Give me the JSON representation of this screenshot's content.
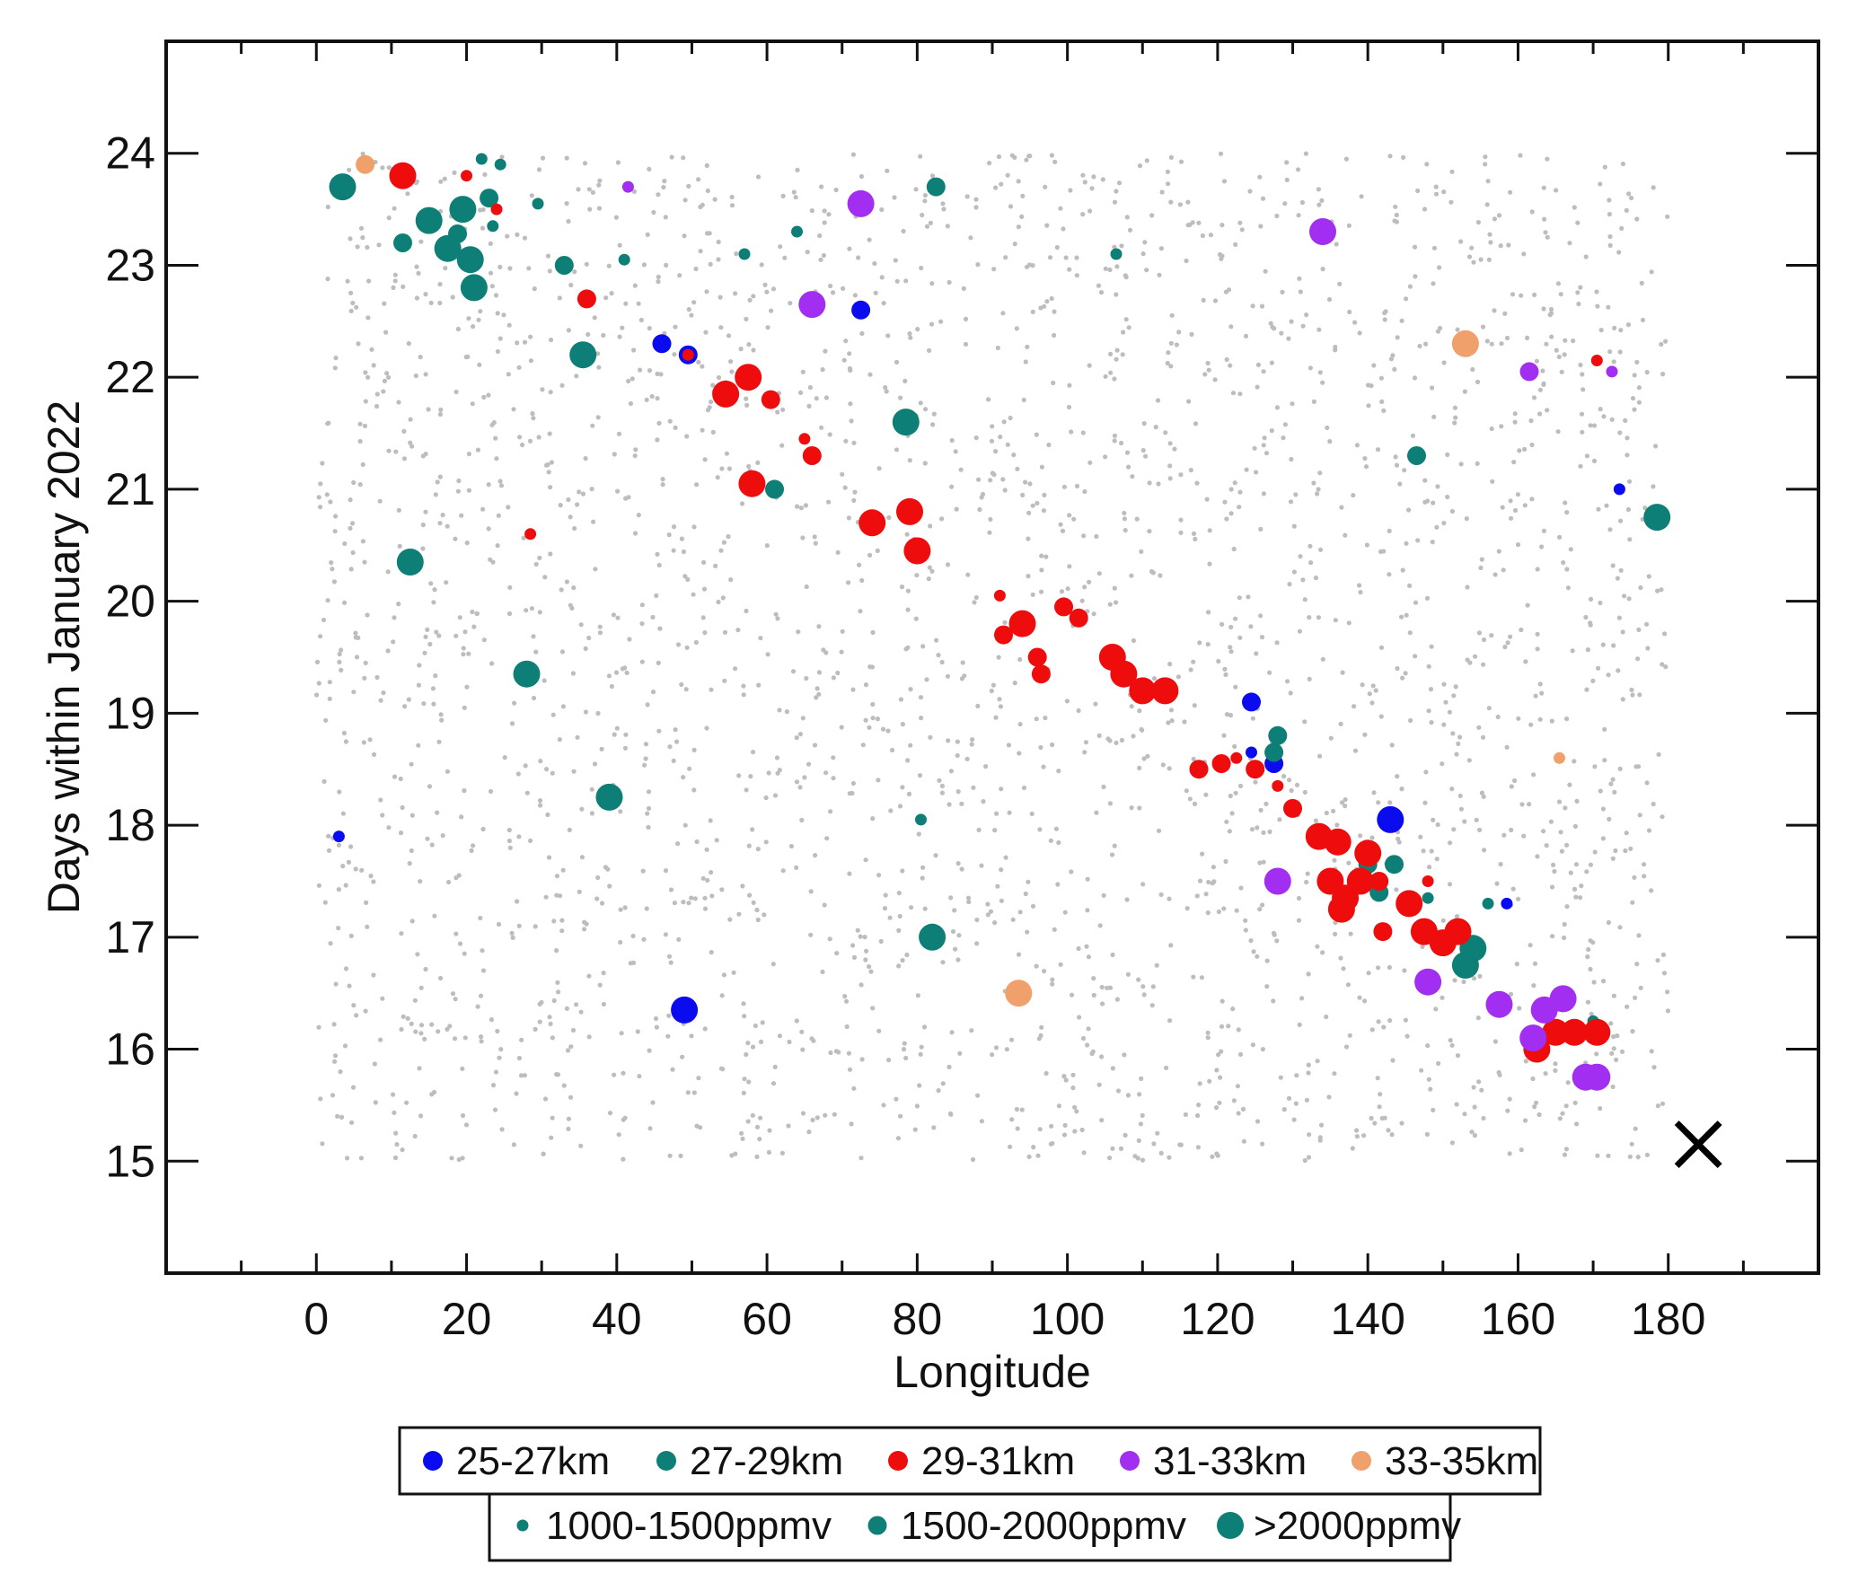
{
  "chart_data": {
    "type": "scatter",
    "xlabel": "Longitude",
    "ylabel": "Days within January 2022",
    "xlim": [
      -20,
      200
    ],
    "ylim": [
      14,
      25
    ],
    "xticks": [
      0,
      20,
      40,
      60,
      80,
      100,
      120,
      140,
      160,
      180
    ],
    "yticks": [
      15,
      16,
      17,
      18,
      19,
      20,
      21,
      22,
      23,
      24
    ],
    "altitude_legend": [
      {
        "label": "25-27km",
        "color": "#0b0bf0"
      },
      {
        "label": "27-29km",
        "color": "#0e7f76"
      },
      {
        "label": "29-31km",
        "color": "#ee0c0c"
      },
      {
        "label": "31-33km",
        "color": "#a12ef0"
      },
      {
        "label": "33-35km",
        "color": "#f0a06a"
      }
    ],
    "concentration_legend": [
      {
        "label": "1000-1500ppmv",
        "size": 1
      },
      {
        "label": "1500-2000ppmv",
        "size": 2
      },
      {
        "label": ">2000ppmv",
        "size": 3
      }
    ],
    "background_sampling": {
      "color": "#bdbdbd",
      "x_range": [
        0,
        180
      ],
      "y_range": [
        15,
        24
      ],
      "description_count": 2600
    },
    "endpoint_marker": {
      "symbol": "X",
      "x": 184,
      "y": 15.15
    },
    "series": [
      {
        "name": "25-27km",
        "color": "#0b0bf0",
        "points": [
          [
            46,
            22.3,
            2
          ],
          [
            49.5,
            22.2,
            2
          ],
          [
            72.5,
            22.6,
            2
          ],
          [
            3,
            17.9,
            1
          ],
          [
            49,
            16.35,
            3
          ],
          [
            124.5,
            19.1,
            2
          ],
          [
            124.5,
            18.65,
            1
          ],
          [
            127.5,
            18.55,
            2
          ],
          [
            143,
            18.05,
            3
          ],
          [
            158.5,
            17.3,
            1
          ],
          [
            173.5,
            21.0,
            1
          ]
        ]
      },
      {
        "name": "27-29km",
        "color": "#0e7f76",
        "points": [
          [
            3.5,
            23.7,
            3
          ],
          [
            22,
            23.95,
            1
          ],
          [
            24.5,
            23.9,
            1
          ],
          [
            15,
            23.4,
            3
          ],
          [
            19.5,
            23.5,
            3
          ],
          [
            23,
            23.6,
            2
          ],
          [
            11.5,
            23.2,
            2
          ],
          [
            17.5,
            23.15,
            3
          ],
          [
            20.5,
            23.05,
            3
          ],
          [
            21,
            22.8,
            3
          ],
          [
            29.5,
            23.55,
            1
          ],
          [
            33,
            23.0,
            2
          ],
          [
            41,
            23.05,
            1
          ],
          [
            57,
            23.1,
            1
          ],
          [
            64,
            23.3,
            1
          ],
          [
            82.5,
            23.7,
            2
          ],
          [
            106.5,
            23.1,
            1
          ],
          [
            35.5,
            22.2,
            3
          ],
          [
            78.5,
            21.6,
            3
          ],
          [
            61,
            21.0,
            2
          ],
          [
            12.5,
            20.35,
            3
          ],
          [
            28,
            19.35,
            3
          ],
          [
            39,
            18.25,
            3
          ],
          [
            80.5,
            18.05,
            1
          ],
          [
            82,
            17.0,
            3
          ],
          [
            146.5,
            21.3,
            2
          ],
          [
            178.5,
            20.75,
            3
          ],
          [
            128,
            18.8,
            2
          ],
          [
            127.5,
            18.65,
            2
          ],
          [
            140,
            17.65,
            2
          ],
          [
            143.5,
            17.65,
            2
          ],
          [
            141.5,
            17.4,
            2
          ],
          [
            148,
            17.35,
            1
          ],
          [
            156,
            17.3,
            1
          ],
          [
            154,
            16.9,
            3
          ],
          [
            153,
            16.75,
            3
          ],
          [
            170,
            16.25,
            1
          ],
          [
            23.5,
            23.35,
            1
          ],
          [
            18.8,
            23.28,
            2
          ]
        ]
      },
      {
        "name": "29-31km",
        "color": "#ee0c0c",
        "points": [
          [
            11.5,
            23.8,
            3
          ],
          [
            20,
            23.8,
            1
          ],
          [
            24,
            23.5,
            1
          ],
          [
            36,
            22.7,
            2
          ],
          [
            49.5,
            22.2,
            1
          ],
          [
            54.5,
            21.85,
            3
          ],
          [
            57.5,
            22.0,
            3
          ],
          [
            60.5,
            21.8,
            2
          ],
          [
            65,
            21.45,
            1
          ],
          [
            66,
            21.3,
            2
          ],
          [
            58,
            21.05,
            3
          ],
          [
            74,
            20.7,
            3
          ],
          [
            79,
            20.8,
            3
          ],
          [
            80,
            20.45,
            3
          ],
          [
            28.5,
            20.6,
            1
          ],
          [
            91,
            20.05,
            1
          ],
          [
            91.5,
            19.7,
            2
          ],
          [
            94,
            19.8,
            3
          ],
          [
            96,
            19.5,
            2
          ],
          [
            96.5,
            19.35,
            2
          ],
          [
            99.5,
            19.95,
            2
          ],
          [
            101.5,
            19.85,
            2
          ],
          [
            106,
            19.5,
            3
          ],
          [
            107.5,
            19.35,
            3
          ],
          [
            110,
            19.2,
            3
          ],
          [
            113,
            19.2,
            3
          ],
          [
            117.5,
            18.5,
            2
          ],
          [
            120.5,
            18.55,
            2
          ],
          [
            122.5,
            18.6,
            1
          ],
          [
            125,
            18.5,
            2
          ],
          [
            128,
            18.35,
            1
          ],
          [
            130,
            18.15,
            2
          ],
          [
            133.5,
            17.9,
            3
          ],
          [
            136,
            17.85,
            3
          ],
          [
            140,
            17.75,
            3
          ],
          [
            139,
            17.5,
            3
          ],
          [
            135,
            17.5,
            3
          ],
          [
            137,
            17.35,
            3
          ],
          [
            136.5,
            17.25,
            3
          ],
          [
            141.5,
            17.5,
            2
          ],
          [
            142,
            17.05,
            2
          ],
          [
            145.5,
            17.3,
            3
          ],
          [
            147.5,
            17.05,
            3
          ],
          [
            150,
            16.95,
            3
          ],
          [
            152,
            17.05,
            3
          ],
          [
            148,
            17.5,
            1
          ],
          [
            162.5,
            16.0,
            3
          ],
          [
            165,
            16.15,
            3
          ],
          [
            167.5,
            16.15,
            3
          ],
          [
            170.5,
            16.15,
            3
          ],
          [
            170.5,
            22.15,
            1
          ]
        ]
      },
      {
        "name": "31-33km",
        "color": "#a12ef0",
        "points": [
          [
            41.5,
            23.7,
            1
          ],
          [
            72.5,
            23.55,
            3
          ],
          [
            66,
            22.65,
            3
          ],
          [
            134,
            23.3,
            3
          ],
          [
            161.5,
            22.05,
            2
          ],
          [
            172.5,
            22.05,
            1
          ],
          [
            128,
            17.5,
            3
          ],
          [
            148,
            16.6,
            3
          ],
          [
            157.5,
            16.4,
            3
          ],
          [
            163.5,
            16.35,
            3
          ],
          [
            166,
            16.45,
            3
          ],
          [
            162,
            16.1,
            3
          ],
          [
            169,
            15.75,
            3
          ],
          [
            170.5,
            15.75,
            3
          ]
        ]
      },
      {
        "name": "33-35km",
        "color": "#f0a06a",
        "points": [
          [
            6.5,
            23.9,
            2
          ],
          [
            153,
            22.3,
            3
          ],
          [
            165.5,
            18.6,
            1
          ],
          [
            93.5,
            16.5,
            3
          ]
        ]
      }
    ]
  }
}
